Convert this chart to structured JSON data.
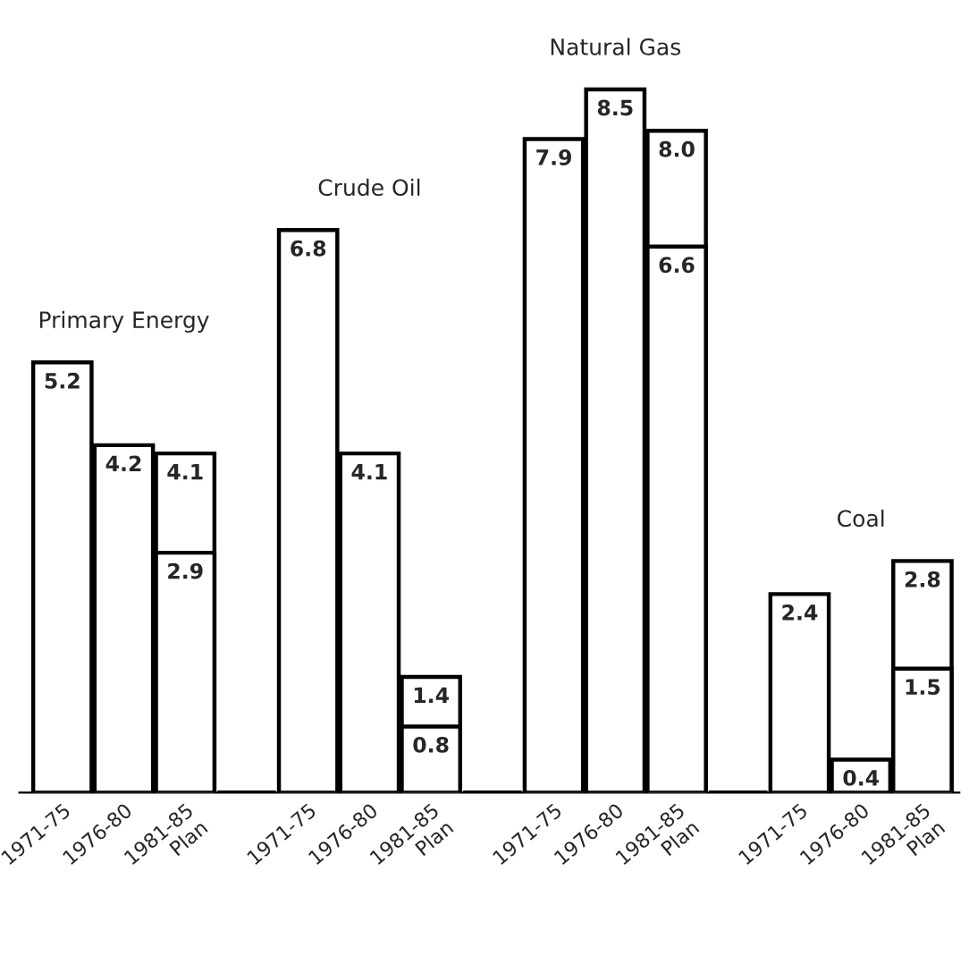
{
  "chart_data": {
    "type": "bar",
    "categories": [
      "1971-75",
      "1976-80",
      "1981-85\nPlan",
      null,
      "1971-75",
      "1976-80",
      "1981-85\nPlan",
      null,
      "1971-75",
      "1976-80",
      "1981-85\nPlan",
      null,
      "1971-75",
      "1976-80",
      "1981-85\nPlan"
    ],
    "series": [
      {
        "color": "#ffffff",
        "values": [
          5.2,
          4.2,
          2.9,
          null,
          6.8,
          4.1,
          0.8,
          null,
          7.9,
          8.5,
          6.6,
          null,
          2.4,
          0.4,
          1.5
        ],
        "value_labels": [
          "5.2",
          "4.2",
          "2.9",
          null,
          "6.8",
          "4.1",
          "0.8",
          null,
          "7.9",
          "8.5",
          "6.6",
          null,
          "2.4",
          "0.4",
          "1.5"
        ]
      },
      {
        "color": "#ffffff",
        "values": [
          null,
          null,
          4.1,
          null,
          null,
          null,
          1.4,
          null,
          null,
          null,
          8.0,
          null,
          null,
          null,
          2.8
        ],
        "value_labels": [
          null,
          null,
          "4.1",
          null,
          null,
          null,
          "1.4",
          null,
          null,
          null,
          "8.0",
          null,
          null,
          null,
          "2.8"
        ]
      }
    ],
    "annotations": [
      "Primary Energy",
      "Crude Oil",
      "Natural Gas",
      "Coal"
    ],
    "grid": false,
    "legend": false
  }
}
